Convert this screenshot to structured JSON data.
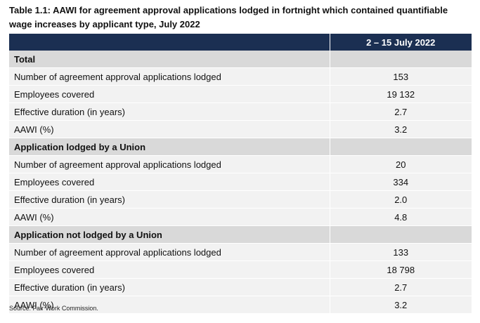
{
  "title": "Table 1.1: AAWI for agreement approval applications lodged in fortnight which contained quantifiable wage increases by applicant type, July 2022",
  "table": {
    "column_header": "2 – 15 July 2022",
    "sections": [
      {
        "name": "Total",
        "rows": [
          {
            "label": "Number of agreement approval applications lodged",
            "value": "153"
          },
          {
            "label": "Employees covered",
            "value": "19 132"
          },
          {
            "label": "Effective duration (in years)",
            "value": "2.7"
          },
          {
            "label": "AAWI (%)",
            "value": "3.2"
          }
        ]
      },
      {
        "name": "Application lodged by a Union",
        "rows": [
          {
            "label": "Number of agreement approval applications lodged",
            "value": "20"
          },
          {
            "label": "Employees covered",
            "value": "334"
          },
          {
            "label": "Effective duration (in years)",
            "value": "2.0"
          },
          {
            "label": "AAWI (%)",
            "value": "4.8"
          }
        ]
      },
      {
        "name": "Application not lodged by a Union",
        "rows": [
          {
            "label": "Number of agreement approval applications lodged",
            "value": "133"
          },
          {
            "label": "Employees covered",
            "value": "18 798"
          },
          {
            "label": "Effective duration (in years)",
            "value": "2.7"
          },
          {
            "label": "AAWI (%)",
            "value": "3.2"
          }
        ]
      }
    ]
  },
  "source": "Source:  Fair Work Commission.",
  "colors": {
    "header_bg": "#1b2f52",
    "section_bg": "#d9d9d9",
    "row_bg": "#f2f2f2"
  }
}
